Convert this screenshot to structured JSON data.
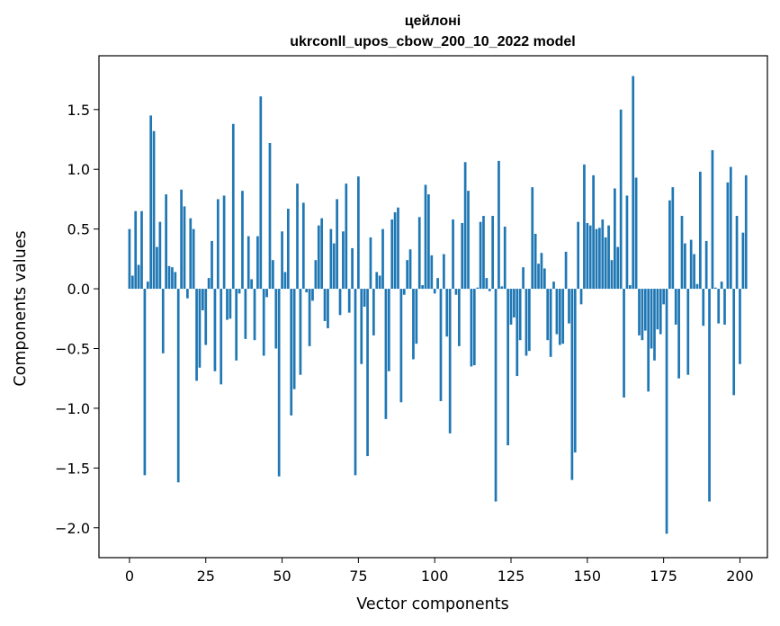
{
  "chart_data": {
    "type": "bar",
    "title_line1": "цейлоні",
    "title_line2": "ukrconll_upos_cbow_200_10_2022 model",
    "xlabel": "Vector components",
    "ylabel": "Components values",
    "xlim": [
      -10,
      209
    ],
    "ylim": [
      -2.25,
      1.95
    ],
    "x_ticks": [
      0,
      25,
      50,
      75,
      100,
      125,
      150,
      175,
      200
    ],
    "y_ticks": [
      -2.0,
      -1.5,
      -1.0,
      -0.5,
      0.0,
      0.5,
      1.0,
      1.5
    ],
    "x_tick_labels": [
      "0",
      "25",
      "50",
      "75",
      "100",
      "125",
      "150",
      "175",
      "200"
    ],
    "y_tick_labels": [
      "−2.0",
      "−1.5",
      "−1.0",
      "−0.5",
      "0.0",
      "0.5",
      "1.0",
      "1.5"
    ],
    "bar_color": "#1f77b4",
    "grid": false,
    "values": [
      0.5,
      0.11,
      0.65,
      0.2,
      0.65,
      -1.56,
      0.06,
      1.45,
      1.32,
      0.35,
      0.56,
      -0.54,
      0.79,
      0.19,
      0.18,
      0.14,
      -1.62,
      0.83,
      0.69,
      -0.08,
      0.59,
      0.5,
      -0.77,
      -0.66,
      -0.18,
      -0.47,
      0.09,
      0.4,
      -0.69,
      0.75,
      -0.8,
      0.78,
      -0.26,
      -0.25,
      1.38,
      -0.6,
      -0.04,
      0.82,
      -0.42,
      0.44,
      0.08,
      -0.43,
      0.44,
      1.61,
      -0.56,
      -0.07,
      1.22,
      0.24,
      -0.5,
      -1.57,
      0.48,
      0.14,
      0.67,
      -1.06,
      -0.84,
      0.88,
      -0.72,
      0.72,
      -0.03,
      -0.48,
      -0.1,
      0.24,
      0.53,
      0.59,
      -0.27,
      -0.33,
      0.5,
      0.38,
      0.75,
      -0.22,
      0.48,
      0.88,
      -0.2,
      0.34,
      -1.56,
      0.94,
      -0.63,
      -0.15,
      -1.4,
      0.43,
      -0.39,
      0.14,
      0.11,
      0.5,
      -1.09,
      -0.69,
      0.58,
      0.64,
      0.68,
      -0.95,
      -0.05,
      0.24,
      0.33,
      -0.59,
      -0.46,
      0.6,
      0.03,
      0.87,
      0.79,
      0.28,
      -0.04,
      0.09,
      -0.94,
      0.29,
      -0.4,
      -1.21,
      0.58,
      -0.05,
      -0.48,
      0.55,
      1.06,
      0.82,
      -0.65,
      -0.64,
      0.01,
      0.56,
      0.61,
      0.09,
      -0.02,
      0.61,
      -1.78,
      1.07,
      0.02,
      0.52,
      -1.31,
      -0.3,
      -0.24,
      -0.73,
      -0.43,
      0.18,
      -0.56,
      -0.52,
      0.85,
      0.46,
      0.21,
      0.3,
      0.17,
      -0.43,
      -0.57,
      0.06,
      -0.38,
      -0.47,
      -0.46,
      0.31,
      -0.29,
      -1.6,
      -1.37,
      0.56,
      -0.13,
      1.04,
      0.55,
      0.53,
      0.95,
      0.5,
      0.51,
      0.58,
      0.43,
      0.53,
      0.24,
      0.84,
      0.35,
      1.5,
      -0.91,
      0.78,
      0.03,
      1.78,
      0.93,
      -0.39,
      -0.43,
      -0.35,
      -0.86,
      -0.5,
      -0.6,
      -0.34,
      -0.38,
      -0.13,
      -2.05,
      0.74,
      0.85,
      -0.3,
      -0.75,
      0.61,
      0.38,
      -0.72,
      0.41,
      0.29,
      0.04,
      0.98,
      -0.31,
      0.4,
      -1.78,
      1.16,
      0.01,
      -0.29,
      0.06,
      -0.3,
      0.89,
      1.02,
      -0.89,
      0.61,
      -0.63,
      0.47,
      0.95
    ]
  }
}
